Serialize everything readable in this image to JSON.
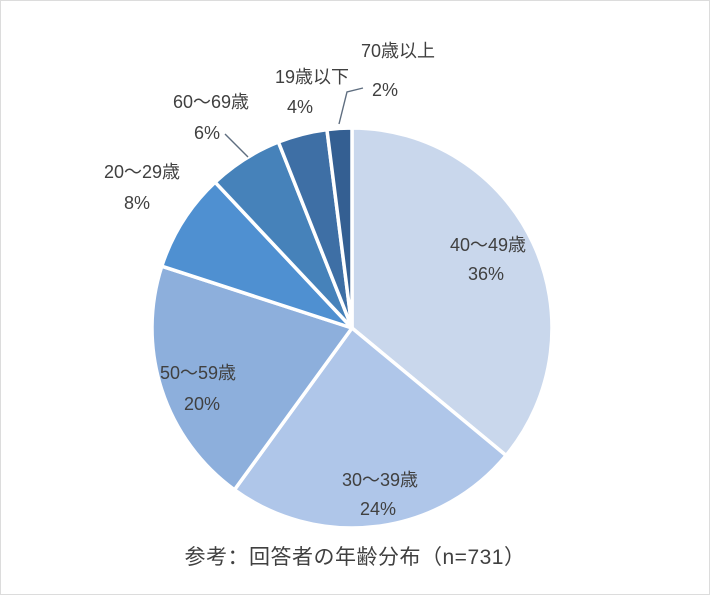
{
  "chart_data": {
    "type": "pie",
    "title": "参考：回答者の年齢分布（n=731）",
    "n": 731,
    "start_angle_deg": 0,
    "direction": "clockwise",
    "value_suffix": "%",
    "legend": "none",
    "slices": [
      {
        "label": "40〜49歳",
        "value": 36,
        "color": "#c9d7ec",
        "label_position": "inside",
        "leader_line": false
      },
      {
        "label": "30〜39歳",
        "value": 24,
        "color": "#afc6e9",
        "label_position": "inside",
        "leader_line": false
      },
      {
        "label": "50〜59歳",
        "value": 20,
        "color": "#8dafdc",
        "label_position": "inside",
        "leader_line": false
      },
      {
        "label": "20〜29歳",
        "value": 8,
        "color": "#4f90d1",
        "label_position": "outside",
        "leader_line": false
      },
      {
        "label": "60〜69歳",
        "value": 6,
        "color": "#4682ba",
        "label_position": "outside",
        "leader_line": true
      },
      {
        "label": "19歳以下",
        "value": 4,
        "color": "#3e6fa5",
        "label_position": "outside",
        "leader_line": false
      },
      {
        "label": "70歳以上",
        "value": 2,
        "color": "#345f92",
        "label_position": "outside",
        "leader_line": true
      }
    ]
  }
}
